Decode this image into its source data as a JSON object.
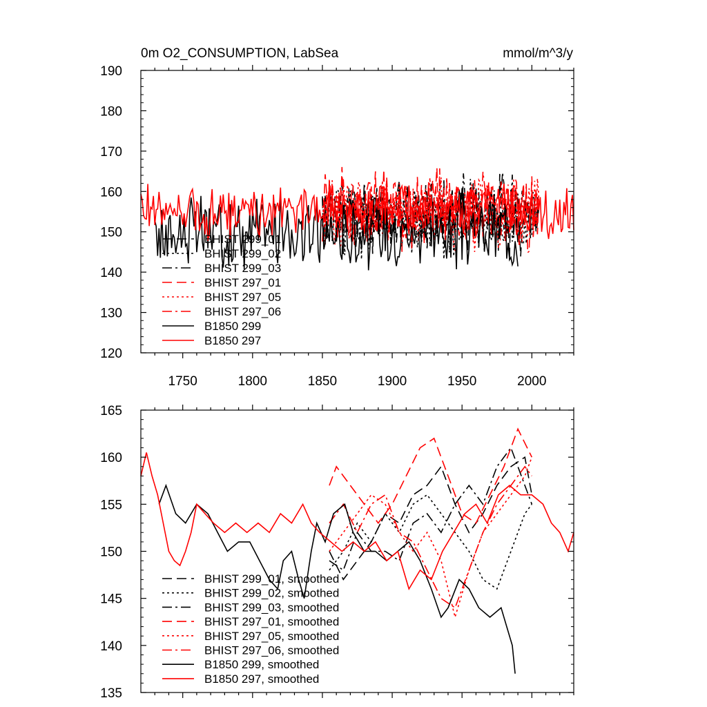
{
  "title_left": "0m O2_CONSUMPTION, LabSea",
  "title_right": "mmol/m^3/y",
  "chart_data": [
    {
      "type": "line",
      "title": "0m O2_CONSUMPTION, LabSea",
      "unit": "mmol/m^3/y",
      "xlim": [
        1720,
        2030
      ],
      "ylim": [
        120,
        190
      ],
      "xticks": [
        1750,
        1800,
        1850,
        1900,
        1950,
        2000
      ],
      "yticks": [
        120,
        130,
        140,
        150,
        160,
        170,
        180,
        190
      ],
      "xtick_labels_shown": true,
      "legend_position": "bottom-left",
      "series": [
        {
          "name": "BHIST 299_01",
          "color": "#000000",
          "dash": "dashed",
          "x_start": 1850,
          "x_end": 2005,
          "mean": 154,
          "spread": 7,
          "seed": 11
        },
        {
          "name": "BHIST 299_02",
          "color": "#000000",
          "dash": "dotted",
          "x_start": 1850,
          "x_end": 2005,
          "mean": 153,
          "spread": 7,
          "seed": 12
        },
        {
          "name": "BHIST 299_03",
          "color": "#000000",
          "dash": "dashdot",
          "x_start": 1850,
          "x_end": 2005,
          "mean": 155,
          "spread": 7,
          "seed": 13
        },
        {
          "name": "BHIST 297_01",
          "color": "#ff0000",
          "dash": "dashed",
          "x_start": 1850,
          "x_end": 2005,
          "mean": 156,
          "spread": 7,
          "seed": 14
        },
        {
          "name": "BHIST 297_05",
          "color": "#ff0000",
          "dash": "dotted",
          "x_start": 1850,
          "x_end": 2005,
          "mean": 155,
          "spread": 7,
          "seed": 15
        },
        {
          "name": "BHIST 297_06",
          "color": "#ff0000",
          "dash": "dashdot",
          "x_start": 1850,
          "x_end": 2005,
          "mean": 155,
          "spread": 7,
          "seed": 16
        },
        {
          "name": "B1850 299",
          "color": "#000000",
          "dash": "solid",
          "x_start": 1730,
          "x_end": 1990,
          "mean": 150,
          "spread": 7,
          "seed": 17
        },
        {
          "name": "B1850 297",
          "color": "#ff0000",
          "dash": "solid",
          "x_start": 1720,
          "x_end": 2030,
          "mean": 155,
          "spread": 5,
          "seed": 18
        }
      ]
    },
    {
      "type": "line",
      "title": "",
      "xlim": [
        1720,
        2030
      ],
      "ylim": [
        135,
        165
      ],
      "xticks": [
        1750,
        1800,
        1850,
        1900,
        1950,
        2000
      ],
      "yticks": [
        135,
        140,
        145,
        150,
        155,
        160,
        165
      ],
      "xtick_labels_shown": false,
      "legend_position": "bottom-left",
      "series": [
        {
          "name": "BHIST 299_01, smoothed",
          "color": "#000000",
          "dash": "dashed",
          "points": [
            [
              1855,
              150
            ],
            [
              1865,
              147
            ],
            [
              1875,
              149
            ],
            [
              1885,
              151
            ],
            [
              1895,
              154
            ],
            [
              1905,
              153
            ],
            [
              1915,
              156
            ],
            [
              1925,
              157
            ],
            [
              1935,
              159
            ],
            [
              1945,
              155
            ],
            [
              1955,
              152
            ],
            [
              1965,
              154
            ],
            [
              1975,
              157
            ],
            [
              1985,
              159
            ],
            [
              1995,
              160
            ],
            [
              2000,
              156
            ]
          ]
        },
        {
          "name": "BHIST 299_02, smoothed",
          "color": "#000000",
          "dash": "dotted",
          "points": [
            [
              1855,
              148
            ],
            [
              1865,
              150
            ],
            [
              1875,
              153
            ],
            [
              1885,
              151
            ],
            [
              1895,
              154
            ],
            [
              1905,
              152
            ],
            [
              1915,
              155
            ],
            [
              1925,
              156
            ],
            [
              1935,
              154
            ],
            [
              1945,
              152
            ],
            [
              1955,
              150
            ],
            [
              1965,
              147
            ],
            [
              1975,
              146
            ],
            [
              1985,
              150
            ],
            [
              1995,
              154
            ],
            [
              2000,
              155
            ]
          ]
        },
        {
          "name": "BHIST 299_03, smoothed",
          "color": "#000000",
          "dash": "dashdot",
          "points": [
            [
              1855,
              149
            ],
            [
              1865,
              148
            ],
            [
              1875,
              152
            ],
            [
              1885,
              150
            ],
            [
              1895,
              150
            ],
            [
              1905,
              149
            ],
            [
              1915,
              153
            ],
            [
              1925,
              154
            ],
            [
              1935,
              152
            ],
            [
              1945,
              155
            ],
            [
              1955,
              157
            ],
            [
              1965,
              155
            ],
            [
              1975,
              159
            ],
            [
              1985,
              161
            ],
            [
              1995,
              157
            ],
            [
              2000,
              155
            ]
          ]
        },
        {
          "name": "BHIST 297_01, smoothed",
          "color": "#ff0000",
          "dash": "dashed",
          "points": [
            [
              1855,
              157
            ],
            [
              1860,
              159
            ],
            [
              1870,
              157
            ],
            [
              1880,
              155
            ],
            [
              1890,
              153
            ],
            [
              1900,
              155
            ],
            [
              1910,
              158
            ],
            [
              1920,
              161
            ],
            [
              1930,
              162
            ],
            [
              1940,
              158
            ],
            [
              1950,
              154
            ],
            [
              1960,
              153
            ],
            [
              1970,
              156
            ],
            [
              1980,
              159
            ],
            [
              1990,
              163
            ],
            [
              2000,
              160
            ]
          ]
        },
        {
          "name": "BHIST 297_05, smoothed",
          "color": "#ff0000",
          "dash": "dotted",
          "points": [
            [
              1855,
              150
            ],
            [
              1865,
              152
            ],
            [
              1875,
              154
            ],
            [
              1885,
              156
            ],
            [
              1895,
              155
            ],
            [
              1905,
              152
            ],
            [
              1915,
              150
            ],
            [
              1925,
              152
            ],
            [
              1935,
              149
            ],
            [
              1945,
              143
            ],
            [
              1955,
              148
            ],
            [
              1965,
              152
            ],
            [
              1975,
              154
            ],
            [
              1985,
              156
            ],
            [
              1995,
              158
            ],
            [
              2000,
              160
            ]
          ]
        },
        {
          "name": "BHIST 297_06, smoothed",
          "color": "#ff0000",
          "dash": "dashdot",
          "points": [
            [
              1855,
              153
            ],
            [
              1865,
              155
            ],
            [
              1875,
              152
            ],
            [
              1885,
              155
            ],
            [
              1895,
              156
            ],
            [
              1905,
              152
            ],
            [
              1915,
              151
            ],
            [
              1925,
              148
            ],
            [
              1935,
              145
            ],
            [
              1945,
              144
            ],
            [
              1955,
              148
            ],
            [
              1965,
              152
            ],
            [
              1975,
              155
            ],
            [
              1985,
              157
            ],
            [
              1995,
              159
            ],
            [
              2000,
              158
            ]
          ]
        },
        {
          "name": "B1850 299, smoothed",
          "color": "#000000",
          "dash": "solid",
          "points": [
            [
              1733,
              155
            ],
            [
              1738,
              157
            ],
            [
              1745,
              154
            ],
            [
              1752,
              153
            ],
            [
              1760,
              155
            ],
            [
              1768,
              154
            ],
            [
              1775,
              152
            ],
            [
              1782,
              150
            ],
            [
              1790,
              151
            ],
            [
              1798,
              151
            ],
            [
              1805,
              149
            ],
            [
              1812,
              147
            ],
            [
              1818,
              146
            ],
            [
              1822,
              149
            ],
            [
              1828,
              150
            ],
            [
              1833,
              147
            ],
            [
              1837,
              145
            ],
            [
              1842,
              150
            ],
            [
              1846,
              153
            ],
            [
              1852,
              151
            ],
            [
              1858,
              154
            ],
            [
              1866,
              155
            ],
            [
              1872,
              152
            ],
            [
              1880,
              150
            ],
            [
              1888,
              150
            ],
            [
              1896,
              149
            ],
            [
              1904,
              150
            ],
            [
              1912,
              151
            ],
            [
              1920,
              149
            ],
            [
              1928,
              146
            ],
            [
              1935,
              143
            ],
            [
              1940,
              144
            ],
            [
              1948,
              147
            ],
            [
              1955,
              146
            ],
            [
              1962,
              144
            ],
            [
              1970,
              143
            ],
            [
              1978,
              144
            ],
            [
              1982,
              142
            ],
            [
              1986,
              140
            ],
            [
              1988,
              137
            ]
          ]
        },
        {
          "name": "B1850 297, smoothed",
          "color": "#ff0000",
          "dash": "solid",
          "points": [
            [
              1720,
              158
            ],
            [
              1724,
              160.5
            ],
            [
              1728,
              158
            ],
            [
              1732,
              156
            ],
            [
              1736,
              153
            ],
            [
              1740,
              150
            ],
            [
              1744,
              149
            ],
            [
              1748,
              148.5
            ],
            [
              1752,
              150
            ],
            [
              1756,
              152
            ],
            [
              1760,
              155
            ],
            [
              1766,
              154
            ],
            [
              1772,
              153
            ],
            [
              1780,
              152
            ],
            [
              1788,
              153
            ],
            [
              1796,
              152
            ],
            [
              1804,
              153
            ],
            [
              1812,
              152
            ],
            [
              1820,
              154
            ],
            [
              1828,
              153
            ],
            [
              1836,
              155
            ],
            [
              1842,
              153
            ],
            [
              1848,
              152
            ],
            [
              1856,
              151
            ],
            [
              1864,
              150
            ],
            [
              1872,
              151
            ],
            [
              1880,
              150
            ],
            [
              1888,
              151
            ],
            [
              1896,
              149
            ],
            [
              1904,
              150
            ],
            [
              1912,
              146
            ],
            [
              1920,
              148
            ],
            [
              1928,
              147
            ],
            [
              1936,
              150
            ],
            [
              1944,
              152
            ],
            [
              1952,
              154
            ],
            [
              1960,
              155
            ],
            [
              1968,
              153
            ],
            [
              1976,
              156
            ],
            [
              1984,
              157
            ],
            [
              1992,
              156
            ],
            [
              2000,
              156
            ],
            [
              2008,
              155
            ],
            [
              2014,
              153
            ],
            [
              2020,
              152
            ],
            [
              2026,
              150
            ],
            [
              2030,
              152
            ]
          ]
        }
      ]
    }
  ]
}
